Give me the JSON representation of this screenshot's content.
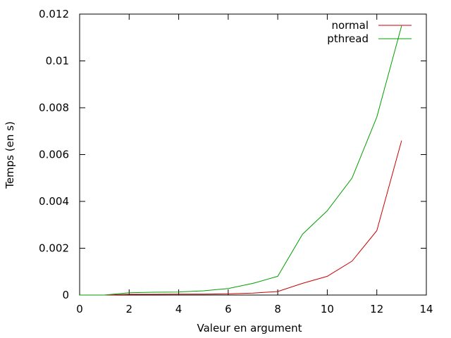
{
  "chart_data": {
    "type": "line",
    "title": "",
    "xlabel": "Valeur en argument",
    "ylabel": "Temps (en s)",
    "xlim": [
      0,
      14
    ],
    "ylim": [
      0,
      0.012
    ],
    "xticks": [
      "0",
      "2",
      "4",
      "6",
      "8",
      "10",
      "12",
      "14"
    ],
    "yticks": [
      "0",
      "0.002",
      "0.004",
      "0.006",
      "0.008",
      "0.01",
      "0.012"
    ],
    "grid": false,
    "legend_position": "top-right",
    "x": [
      0,
      1,
      2,
      3,
      4,
      5,
      6,
      7,
      8,
      9,
      10,
      11,
      12,
      13
    ],
    "series": [
      {
        "name": "normal",
        "color": "#cc0000",
        "values": [
          0,
          0,
          3e-05,
          3e-05,
          4e-05,
          4e-05,
          5e-05,
          8e-05,
          0.00015,
          0.0005,
          0.0008,
          0.00145,
          0.00275,
          0.0066
        ]
      },
      {
        "name": "pthread",
        "color": "#00a000",
        "values": [
          0,
          0,
          0.0001,
          0.00012,
          0.00013,
          0.00018,
          0.00028,
          0.0005,
          0.0008,
          0.0026,
          0.0036,
          0.005,
          0.0076,
          0.0115
        ]
      }
    ]
  }
}
